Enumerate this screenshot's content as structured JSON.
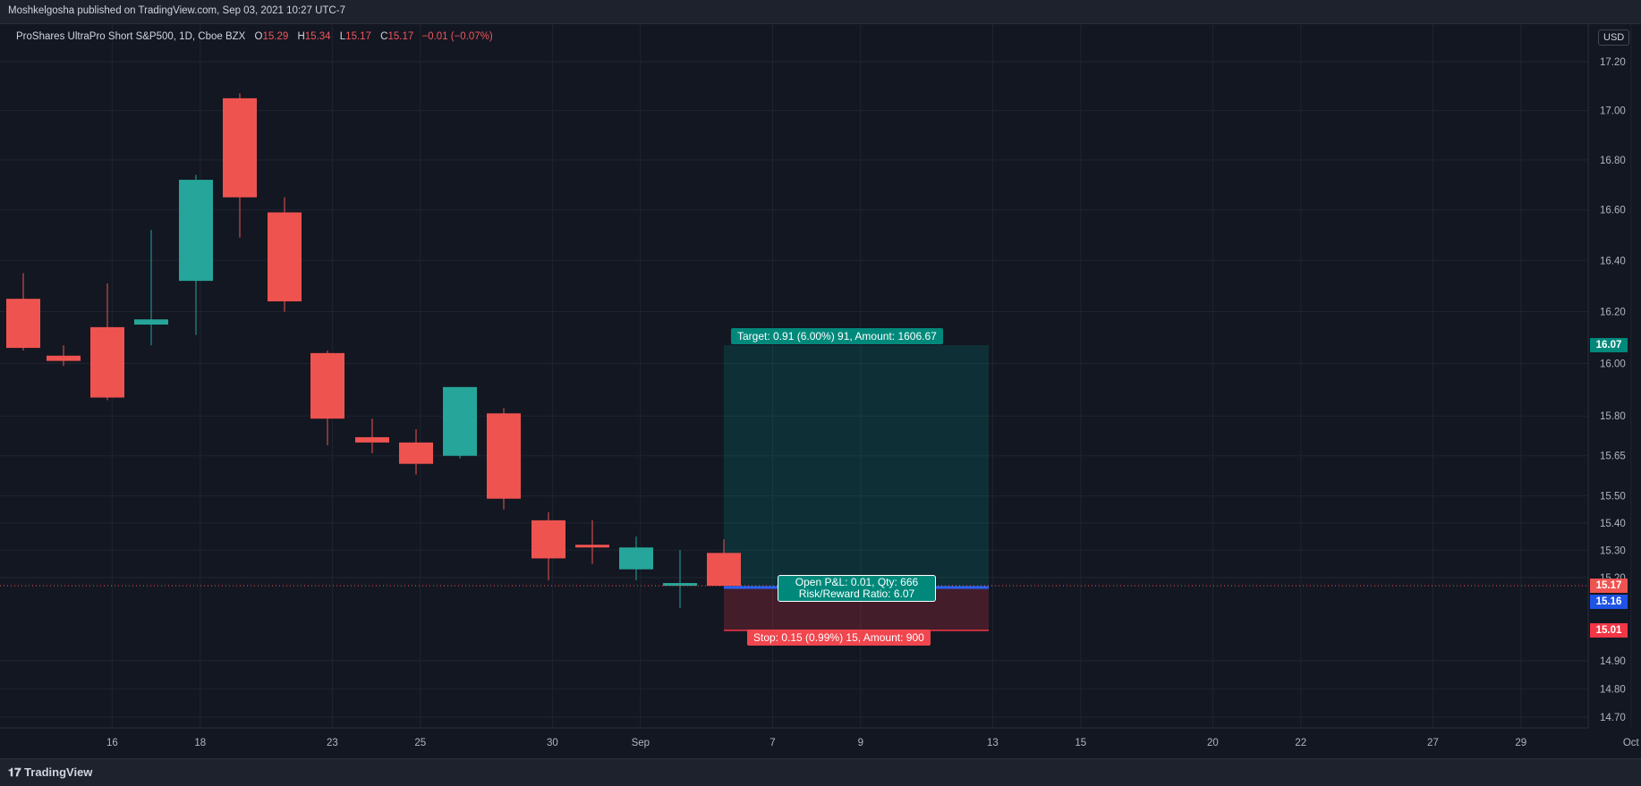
{
  "header": {
    "published": "Moshkelgosha published on TradingView.com, Sep 03, 2021 10:27 UTC-7"
  },
  "legend": {
    "symbol": "ProShares UltraPro Short S&P500, 1D, Cboe BZX",
    "o_label": "O",
    "o_value": "15.29",
    "h_label": "H",
    "h_value": "15.34",
    "l_label": "L",
    "l_value": "15.17",
    "c_label": "C",
    "c_value": "15.17",
    "change": "−0.01 (−0.07%)"
  },
  "currency": "USD",
  "price_axis": {
    "ticks": [
      "17.20",
      "17.00",
      "16.80",
      "16.60",
      "16.40",
      "16.20",
      "16.00",
      "15.80",
      "15.65",
      "15.50",
      "15.40",
      "15.30",
      "15.20",
      "14.90",
      "14.80",
      "14.70"
    ]
  },
  "time_axis": {
    "labels": [
      "16",
      "18",
      "23",
      "25",
      "30",
      "Sep",
      "7",
      "9",
      "13",
      "15",
      "20",
      "22",
      "27",
      "29",
      "Oct"
    ]
  },
  "colors": {
    "up": "#26a69a",
    "down": "#ef5350",
    "background": "#131722",
    "grid": "#1f2430",
    "target_zone": "#00897b",
    "stop_zone": "#f23645",
    "entry_line": "#2962ff"
  },
  "position": {
    "target_label": "Target: 0.91 (6.00%) 91, Amount: 1606.67",
    "stop_label": "Stop: 0.15 (0.99%) 15, Amount: 900",
    "pnl_line1": "Open P&L: 0.01, Qty: 666",
    "pnl_line2": "Risk/Reward Ratio: 6.07",
    "target_price": 16.07,
    "entry_price": 15.16,
    "stop_price": 15.01
  },
  "price_tags": {
    "target": "16.07",
    "last": "15.17",
    "entry": "15.16",
    "stop": "15.01"
  },
  "footer": {
    "brand": "TradingView"
  },
  "chart_data": {
    "type": "candlestick",
    "y_scale": "log",
    "ylim": [
      14.65,
      17.3
    ],
    "grid": true,
    "candles": [
      {
        "date": "Aug 13",
        "o": 16.25,
        "h": 16.35,
        "l": 16.05,
        "c": 16.06
      },
      {
        "date": "Aug 16",
        "o": 16.03,
        "h": 16.07,
        "l": 15.99,
        "c": 16.01
      },
      {
        "date": "Aug 17",
        "o": 16.14,
        "h": 16.31,
        "l": 15.86,
        "c": 15.87
      },
      {
        "date": "Aug 18",
        "o": 16.15,
        "h": 16.52,
        "l": 16.07,
        "c": 16.17
      },
      {
        "date": "Aug 19",
        "o": 16.32,
        "h": 16.74,
        "l": 16.11,
        "c": 16.72
      },
      {
        "date": "Aug 20",
        "o": 17.05,
        "h": 17.07,
        "l": 16.49,
        "c": 16.65
      },
      {
        "date": "Aug 23",
        "o": 16.59,
        "h": 16.65,
        "l": 16.2,
        "c": 16.24
      },
      {
        "date": "Aug 24",
        "o": 16.04,
        "h": 16.05,
        "l": 15.69,
        "c": 15.79
      },
      {
        "date": "Aug 25",
        "o": 15.72,
        "h": 15.79,
        "l": 15.66,
        "c": 15.7
      },
      {
        "date": "Aug 26",
        "o": 15.7,
        "h": 15.75,
        "l": 15.58,
        "c": 15.62
      },
      {
        "date": "Aug 27",
        "o": 15.65,
        "h": 15.91,
        "l": 15.64,
        "c": 15.91
      },
      {
        "date": "Aug 30",
        "o": 15.81,
        "h": 15.83,
        "l": 15.45,
        "c": 15.49
      },
      {
        "date": "Aug 31",
        "o": 15.41,
        "h": 15.44,
        "l": 15.19,
        "c": 15.27
      },
      {
        "date": "Sep 1",
        "o": 15.32,
        "h": 15.41,
        "l": 15.25,
        "c": 15.31
      },
      {
        "date": "Sep 2",
        "o": 15.23,
        "h": 15.35,
        "l": 15.19,
        "c": 15.31
      },
      {
        "date": "Sep 3",
        "o": 15.17,
        "h": 15.3,
        "l": 15.09,
        "c": 15.18
      },
      {
        "date": "Sep 4",
        "o": 15.29,
        "h": 15.34,
        "l": 15.17,
        "c": 15.17
      }
    ]
  }
}
